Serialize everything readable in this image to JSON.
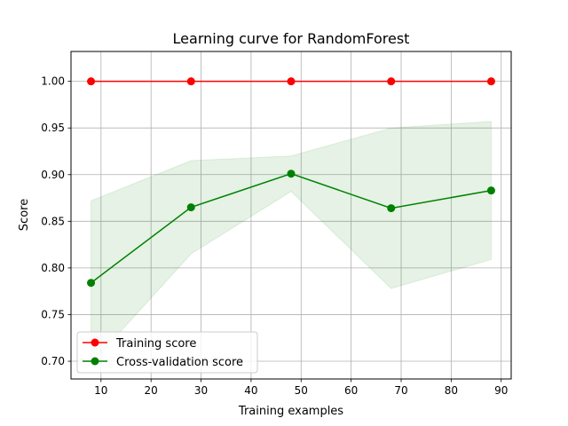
{
  "chart_data": {
    "type": "line",
    "title": "Learning curve for RandomForest",
    "xlabel": "Training examples",
    "ylabel": "Score",
    "xlim": [
      4,
      92
    ],
    "ylim": [
      0.681,
      1.032
    ],
    "grid": true,
    "legend_placement": "lower-left",
    "x_ticks": [
      10,
      20,
      30,
      40,
      50,
      60,
      70,
      80,
      90
    ],
    "x_tick_labels": [
      "10",
      "20",
      "30",
      "40",
      "50",
      "60",
      "70",
      "80",
      "90"
    ],
    "y_ticks": [
      0.7,
      0.75,
      0.8,
      0.85,
      0.9,
      0.95,
      1.0
    ],
    "y_tick_labels": [
      "0.70",
      "0.75",
      "0.80",
      "0.85",
      "0.90",
      "0.95",
      "1.00"
    ],
    "x": [
      8,
      28,
      48,
      68,
      88
    ],
    "series": [
      {
        "name": "Training score",
        "color": "#ff0000",
        "values": [
          1.0,
          1.0,
          1.0,
          1.0,
          1.0
        ],
        "band_lower": [
          1.0,
          1.0,
          1.0,
          1.0,
          1.0
        ],
        "band_upper": [
          1.0,
          1.0,
          1.0,
          1.0,
          1.0
        ],
        "band_color": "#ff0000"
      },
      {
        "name": "Cross-validation score",
        "color": "#008000",
        "values": [
          0.784,
          0.865,
          0.901,
          0.864,
          0.883
        ],
        "band_lower": [
          0.697,
          0.815,
          0.882,
          0.778,
          0.809
        ],
        "band_upper": [
          0.872,
          0.915,
          0.92,
          0.95,
          0.957
        ],
        "band_color": "#008000"
      }
    ]
  }
}
